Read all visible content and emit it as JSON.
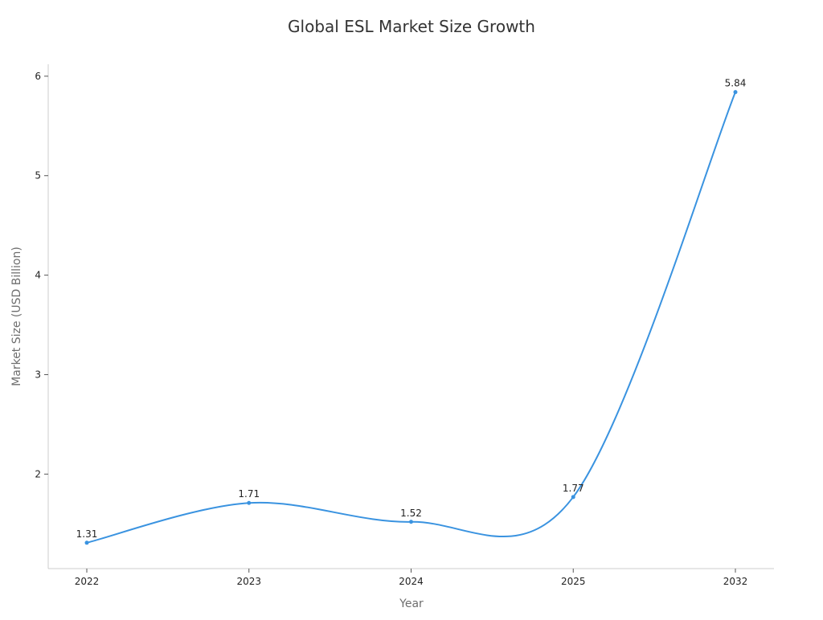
{
  "chart_data": {
    "type": "line",
    "title": "Global ESL Market Size Growth",
    "xlabel": "Year",
    "ylabel": "Market Size (USD Billion)",
    "categories": [
      "2022",
      "2023",
      "2024",
      "2025",
      "2032"
    ],
    "series": [
      {
        "name": "Market Size",
        "values": [
          1.31,
          1.71,
          1.52,
          1.77,
          5.84
        ],
        "labels": [
          "1.31",
          "1.71",
          "1.52",
          "1.77",
          "5.84"
        ]
      }
    ],
    "yticks": [
      2,
      3,
      4,
      5,
      6
    ],
    "ylim": [
      1.05,
      6.12
    ],
    "grid": false,
    "smooth": true,
    "color": "#3a93e0"
  }
}
